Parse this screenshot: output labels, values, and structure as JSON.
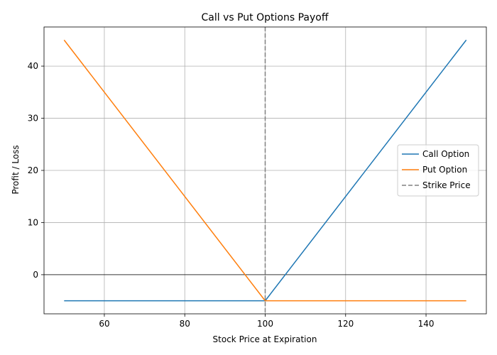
{
  "chart_data": {
    "type": "line",
    "title": "Call vs Put Options Payoff",
    "xlabel": "Stock Price at Expiration",
    "ylabel": "Profit / Loss",
    "xlim": [
      45,
      155
    ],
    "ylim": [
      -7.5,
      47.5
    ],
    "xticks": [
      60,
      80,
      100,
      120,
      140
    ],
    "yticks": [
      0,
      10,
      20,
      30,
      40
    ],
    "grid": true,
    "legend_position": "center-right",
    "series": [
      {
        "name": "Call Option",
        "color": "#1f77b4",
        "style": "solid",
        "x": [
          50,
          100,
          150
        ],
        "y": [
          -5,
          -5,
          45
        ]
      },
      {
        "name": "Put Option",
        "color": "#ff7f0e",
        "style": "solid",
        "x": [
          50,
          100,
          150
        ],
        "y": [
          45,
          -5,
          -5
        ]
      }
    ],
    "reference_lines": [
      {
        "name": "Strike Price",
        "orientation": "vertical",
        "value": 100,
        "color": "#808080",
        "style": "dashed"
      },
      {
        "orientation": "horizontal",
        "value": 0,
        "color": "#000000",
        "style": "solid"
      }
    ]
  }
}
